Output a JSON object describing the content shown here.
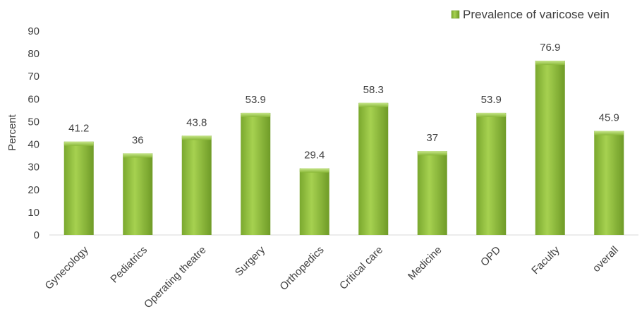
{
  "chart_data": {
    "type": "bar",
    "title": "",
    "xlabel": "",
    "ylabel": "Percent",
    "ylim": [
      0,
      90
    ],
    "yticks": [
      0,
      10,
      20,
      30,
      40,
      50,
      60,
      70,
      80,
      90
    ],
    "grid": false,
    "legend_position": "top-right",
    "categories": [
      "Gynecology",
      "Pediatrics",
      "Operating theatre",
      "Surgery",
      "Orthopedics",
      "Critical care",
      "Medicine",
      "OPD",
      "Faculty",
      "overall"
    ],
    "series": [
      {
        "name": "Prevalence of varicose vein",
        "values": [
          41.2,
          36,
          43.8,
          53.9,
          29.4,
          58.3,
          37,
          53.9,
          76.9,
          45.9
        ],
        "data_labels": [
          "41.2",
          "36",
          "43.8",
          "53.9",
          "29.4",
          "58.3",
          "37",
          "53.9",
          "76.9",
          "45.9"
        ],
        "color": "#92c13b"
      }
    ]
  }
}
